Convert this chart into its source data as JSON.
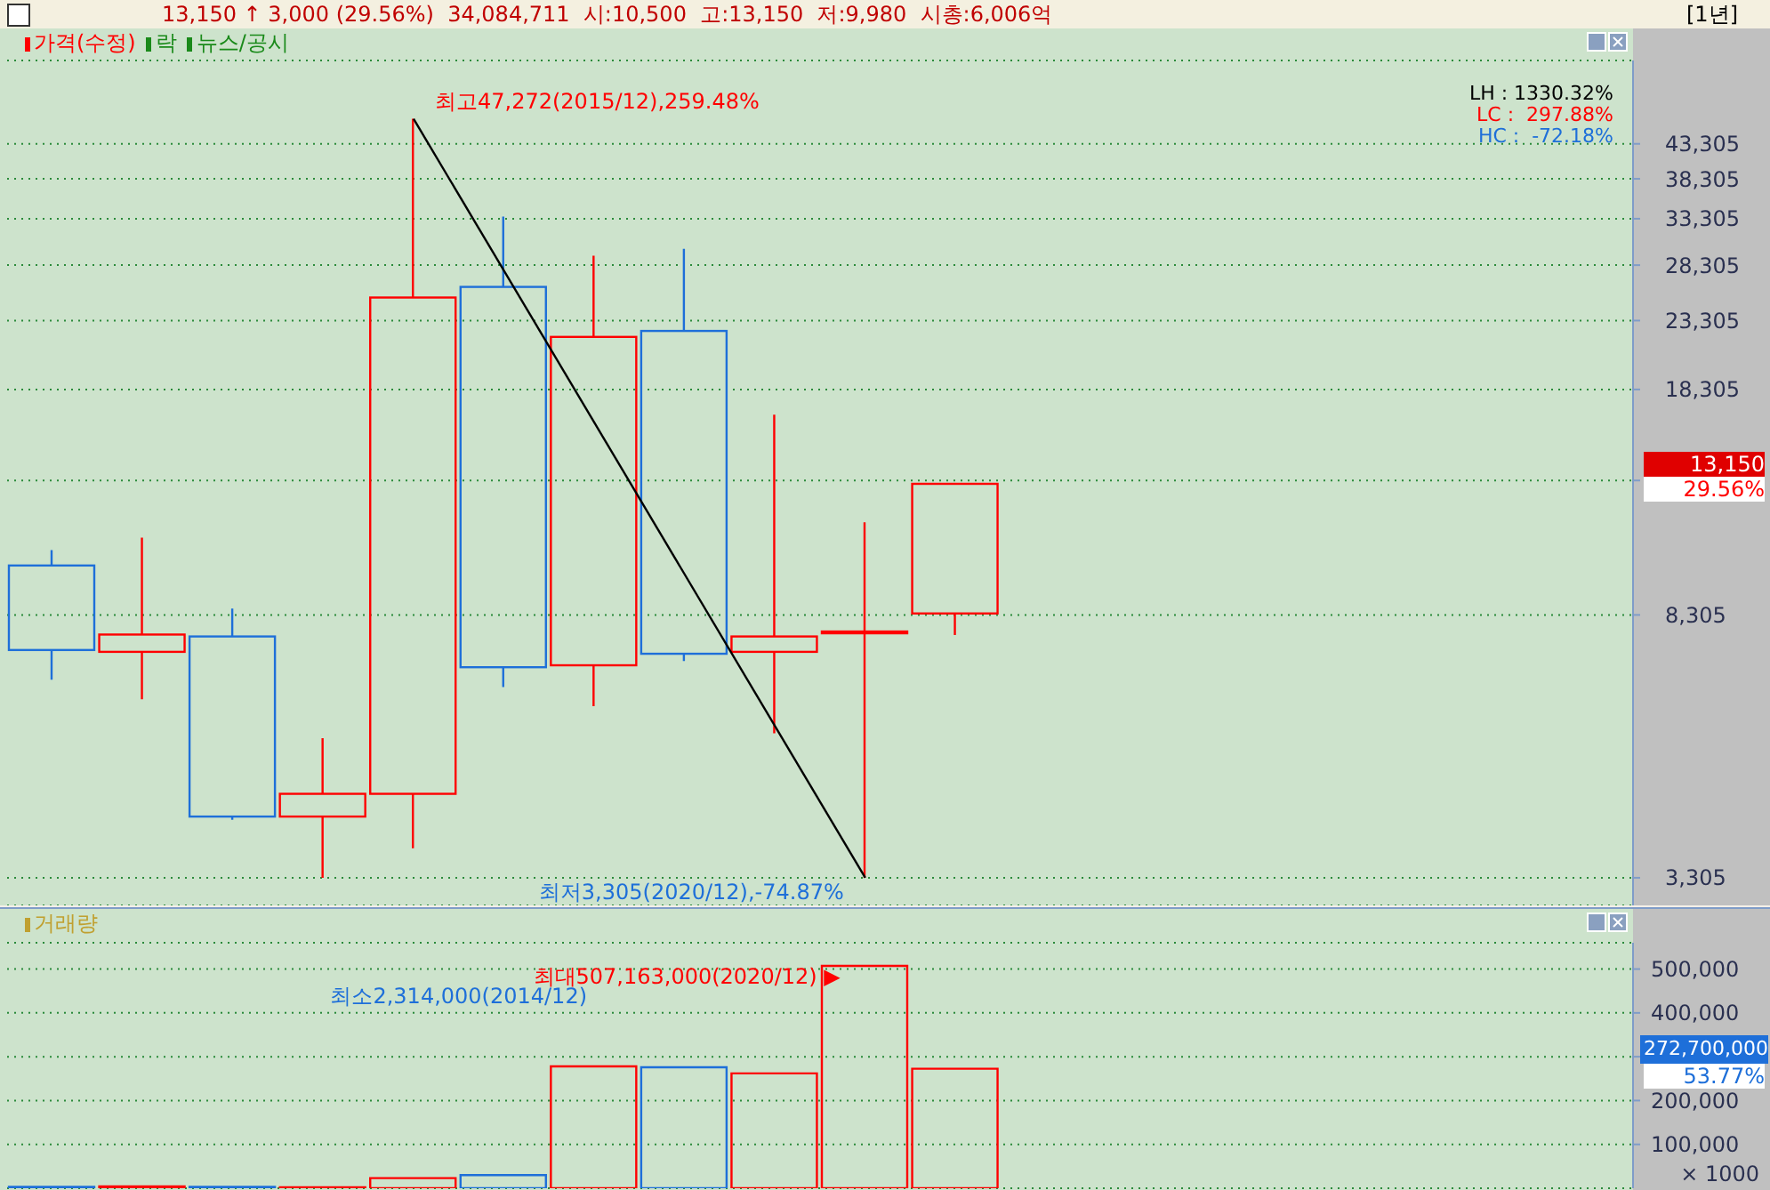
{
  "chart_data": [
    {
      "type": "candlestick",
      "title": "13,150 ↑ 3,000 (29.56%)  34,084,711  시:10,500  고:13,150  저:9,980  시총:6,006억",
      "categories": [
        null,
        null,
        null,
        null,
        null,
        null,
        null,
        null,
        null,
        null,
        null,
        null,
        null,
        null,
        null,
        null,
        null,
        null
      ],
      "series": [
        {
          "name": "가격(수정)",
          "type": "candlestick",
          "color": "#ff0000",
          "ohlc": [
            [
              9876,
              10427,
              6617,
              7344
            ],
            [
              7297,
              10893,
              6177,
              7753
            ],
            [
              7701,
              8491,
              4051,
              4096
            ],
            [
              4096,
              5390,
              3305,
              4436
            ],
            [
              4436,
              47272,
              3665,
              25267
            ],
            [
              26225,
              33553,
              6452,
              6914
            ],
            [
              6961,
              29250,
              6032,
              22009
            ],
            [
              22474,
              29980,
              7066,
              7248
            ],
            [
              7297,
              16757,
              5486,
              7701
            ],
            [
              7836,
              11492,
              3305,
              7836
            ],
            [
              8348,
              13150,
              7741,
              13150
            ],
            null,
            null,
            null,
            null,
            null,
            null,
            null
          ],
          "colors": [
            "#1e6fd9",
            "#ff0000",
            "#1e6fd9",
            "#ff0000",
            "#ff0000",
            "#1e6fd9",
            "#ff0000",
            "#1e6fd9",
            "#ff0000",
            "#ff0000",
            "#ff0000",
            null,
            null,
            null,
            null,
            null,
            null,
            null
          ]
        },
        {
          "type": "line",
          "color": "#000000",
          "values": [
            null,
            null,
            null,
            null,
            47272,
            null,
            null,
            null,
            null,
            3305,
            null,
            null,
            null,
            null,
            null,
            null,
            null,
            null
          ]
        }
      ],
      "log": "y",
      "ylim": [
        3000,
        58000
      ],
      "yticks": [
        {
          "value": 3305,
          "label": "3,305"
        },
        {
          "value": 8305,
          "label": "8,305"
        },
        {
          "value": 13305,
          "label": null
        },
        {
          "value": 18305,
          "label": "18,305"
        },
        {
          "value": 23305,
          "label": "23,305"
        },
        {
          "value": 28305,
          "label": "28,305"
        },
        {
          "value": 33305,
          "label": "33,305"
        },
        {
          "value": 38305,
          "label": "38,305"
        },
        {
          "value": 43305,
          "label": "43,305"
        }
      ],
      "grid": "y",
      "legend": "top left",
      "annotations": [
        "최고47,272(2015/12),259.48%",
        "최저3,305(2020/12),-74.87%",
        "LH : 1330.32%",
        "LC :  297.88%",
        "HC :  -72.18%",
        "락",
        "뉴스/공시",
        "13,150",
        "29.56%",
        "[1년]"
      ]
    },
    {
      "type": "bar",
      "ylabel": "× 1000",
      "categories": [
        null,
        null,
        null,
        null,
        null,
        null,
        null,
        null,
        null,
        null,
        null,
        null,
        null,
        null,
        null,
        null,
        null,
        null
      ],
      "series": [
        {
          "name": "거래량",
          "color": "#c0a030",
          "values": [
            3000,
            4000,
            3000,
            2314,
            23000,
            30000,
            278000,
            276000,
            262000,
            507163,
            272700,
            null,
            null,
            null,
            null,
            null,
            null,
            null
          ],
          "colors": [
            "#1e6fd9",
            "#ff0000",
            "#1e6fd9",
            "#ff0000",
            "#ff0000",
            "#1e6fd9",
            "#ff0000",
            "#1e6fd9",
            "#ff0000",
            "#ff0000",
            "#ff0000",
            null,
            null,
            null,
            null,
            null,
            null,
            null
          ]
        }
      ],
      "ylim": [
        0,
        560000
      ],
      "yticks": [
        {
          "value": 100000,
          "label": "100,000"
        },
        {
          "value": 200000,
          "label": "200,000"
        },
        {
          "value": 300000,
          "label": null
        },
        {
          "value": 400000,
          "label": "400,000"
        },
        {
          "value": 500000,
          "label": "500,000"
        }
      ],
      "grid": "y",
      "legend": "top left",
      "annotations": [
        "최대507,163,000(2020/12) ▶",
        "최소2,314,000(2014/12)",
        "272,700,000",
        "53.77%"
      ]
    }
  ]
}
